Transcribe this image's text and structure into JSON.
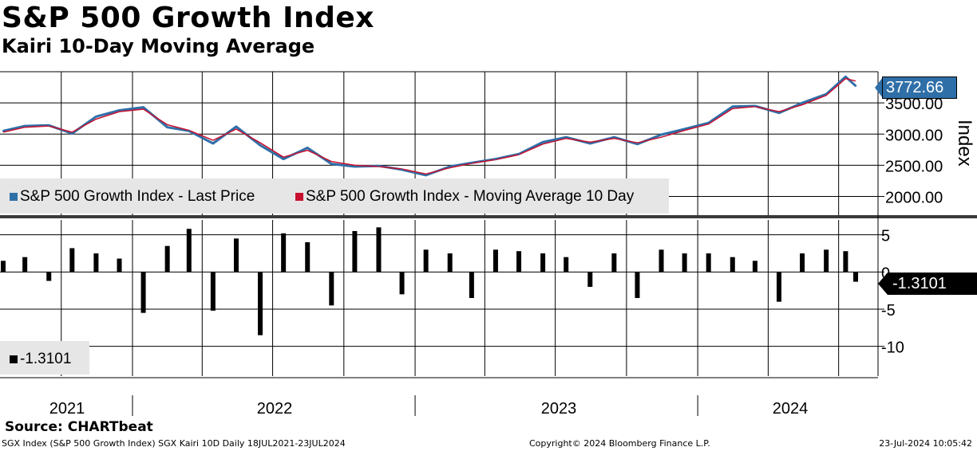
{
  "title": "S&P 500 Growth Index",
  "subtitle": "Kairi 10-Day Moving Average",
  "source": "Source: CHARTbeat",
  "footer": {
    "left": "SGX Index (S&P 500 Growth Index) SGX Kairi 10D  Daily 18JUL2021-23JUL2024",
    "middle": "Copyright© 2024 Bloomberg Finance L.P.",
    "right": "23-Jul-2024 10:05:42"
  },
  "colors": {
    "price": "#2f6fa8",
    "moving_average": "#c8102e",
    "kairi": "#000000",
    "legend_bg": "#e6e6e6"
  },
  "chart_data": [
    {
      "type": "line",
      "ylabel": "Index",
      "ylim": [
        1700,
        4000
      ],
      "yticks": [
        "2000.00",
        "2500.00",
        "3000.00",
        "3500.00"
      ],
      "last_value_label": "3772.66",
      "x_labels": [
        "2021",
        "2022",
        "2023",
        "2024"
      ],
      "x": [
        "2021-07-18",
        "2021-08-15",
        "2021-09-15",
        "2021-10-15",
        "2021-11-15",
        "2021-12-15",
        "2022-01-15",
        "2022-02-15",
        "2022-03-15",
        "2022-04-15",
        "2022-05-15",
        "2022-06-15",
        "2022-07-15",
        "2022-08-15",
        "2022-09-15",
        "2022-10-15",
        "2022-11-15",
        "2022-12-15",
        "2023-01-15",
        "2023-02-15",
        "2023-03-15",
        "2023-04-15",
        "2023-05-15",
        "2023-06-15",
        "2023-07-15",
        "2023-08-15",
        "2023-09-15",
        "2023-10-15",
        "2023-11-15",
        "2023-12-15",
        "2024-01-15",
        "2024-02-15",
        "2024-03-15",
        "2024-04-15",
        "2024-05-15",
        "2024-06-15",
        "2024-07-10",
        "2024-07-23"
      ],
      "series": [
        {
          "name": "S&P 500 Growth Index - Last Price",
          "legend_label": "S&P 500 Growth Index - Last Price",
          "values": [
            3050,
            3130,
            3140,
            3010,
            3280,
            3380,
            3430,
            3110,
            3050,
            2850,
            3120,
            2820,
            2600,
            2780,
            2520,
            2480,
            2490,
            2430,
            2340,
            2480,
            2540,
            2600,
            2680,
            2870,
            2950,
            2850,
            2950,
            2840,
            2990,
            3080,
            3180,
            3440,
            3450,
            3340,
            3500,
            3640,
            3920,
            3772.66
          ]
        },
        {
          "name": "S&P 500 Growth Index - Moving Average 10 Day",
          "legend_label": "S&P 500 Growth Index - Moving Average 10 Day",
          "values": [
            3030,
            3110,
            3130,
            3030,
            3240,
            3360,
            3400,
            3150,
            3060,
            2900,
            3080,
            2860,
            2630,
            2740,
            2560,
            2500,
            2480,
            2440,
            2360,
            2460,
            2530,
            2590,
            2670,
            2840,
            2930,
            2870,
            2930,
            2860,
            2950,
            3060,
            3160,
            3410,
            3440,
            3360,
            3470,
            3620,
            3890,
            3850
          ]
        }
      ]
    },
    {
      "type": "bar",
      "ylim": [
        -14,
        7
      ],
      "yticks": [
        "5",
        "0",
        "-5",
        "-10"
      ],
      "last_value_label": "-1.3101",
      "legend": [
        {
          "name": "-1.3101"
        }
      ],
      "x": [
        "2021-07-18",
        "2021-08-15",
        "2021-09-15",
        "2021-10-15",
        "2021-11-15",
        "2021-12-15",
        "2022-01-15",
        "2022-02-15",
        "2022-03-15",
        "2022-04-15",
        "2022-05-15",
        "2022-06-15",
        "2022-07-15",
        "2022-08-15",
        "2022-09-15",
        "2022-10-15",
        "2022-11-15",
        "2022-12-15",
        "2023-01-15",
        "2023-02-15",
        "2023-03-15",
        "2023-04-15",
        "2023-05-15",
        "2023-06-15",
        "2023-07-15",
        "2023-08-15",
        "2023-09-15",
        "2023-10-15",
        "2023-11-15",
        "2023-12-15",
        "2024-01-15",
        "2024-02-15",
        "2024-03-15",
        "2024-04-15",
        "2024-05-15",
        "2024-06-15",
        "2024-07-10",
        "2024-07-23"
      ],
      "values": [
        1.5,
        2.0,
        -1.2,
        3.2,
        2.5,
        1.8,
        -5.5,
        3.5,
        5.8,
        -5.2,
        4.5,
        -8.5,
        5.2,
        4.0,
        -4.5,
        5.5,
        6.0,
        -3.0,
        3.0,
        2.5,
        -3.5,
        3.0,
        2.8,
        2.5,
        2.0,
        -2.0,
        2.5,
        -3.5,
        3.0,
        2.5,
        2.5,
        2.0,
        1.5,
        -4.0,
        2.5,
        3.0,
        2.8,
        -1.3101
      ]
    }
  ]
}
